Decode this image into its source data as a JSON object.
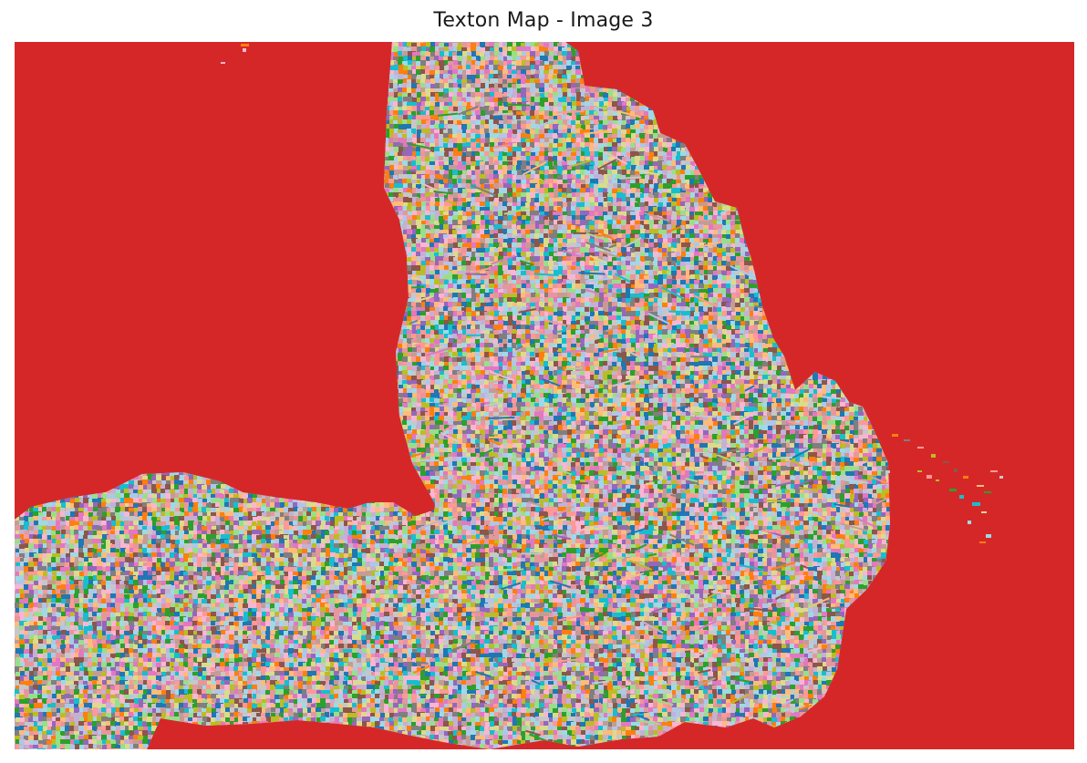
{
  "chart_data": {
    "type": "heatmap",
    "title": "Texton Map - Image 3",
    "xlabel": "",
    "ylabel": "",
    "axes": "off",
    "grid": false,
    "legend": "none",
    "colormap": "tab10",
    "background_class_color": "#d62728",
    "palette": [
      "#1f77b4",
      "#ff7f0e",
      "#2ca02c",
      "#9467bd",
      "#8c564b",
      "#e377c2",
      "#7f7f7f",
      "#bcbd22",
      "#17becf",
      "#98df8a",
      "#ffbb78",
      "#f7b6d2",
      "#c49c94",
      "#c5b0d5",
      "#9edae5",
      "#aec7e8",
      "#dbdb8d",
      "#ff9896",
      "#c7c7c7",
      "#e7969c"
    ]
  }
}
